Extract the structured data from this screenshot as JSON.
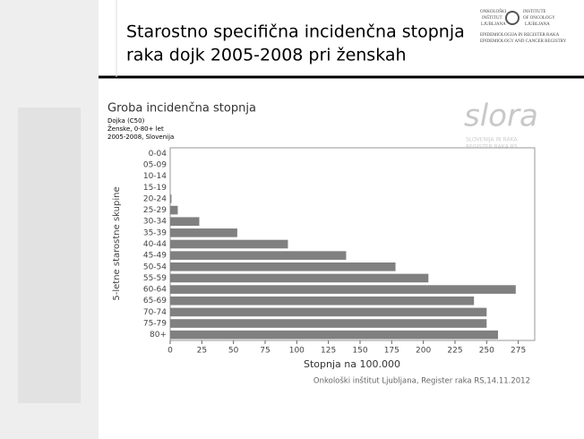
{
  "header": {
    "title_lines": [
      "Starostno specifična incidenčna stopnja",
      "raka dojk 2005-2008 pri ženskah"
    ],
    "logo": [
      "ONKOLOŠKI",
      "INŠTITUT",
      "LJUBLJANA",
      "INSTITUTE",
      "OF ONCOLOGY",
      "LJUBLJANA",
      "EPIDEMIOLOGIJA IN REGISTER RAKA",
      "EPIDEMIOLOGY AND CANCER REGISTRY"
    ]
  },
  "chart_data": {
    "type": "hbar",
    "title": "Groba incidenčna stopnja",
    "subtitle": [
      "Dojka (C50)",
      "Ženske, 0-80+ let",
      "2005-2008, Slovenija"
    ],
    "watermark": [
      "slora",
      "SLOVENIJA IN RAKA",
      "REGISTER RAKA RS"
    ],
    "y_label": "5-letne starostne skupine",
    "x_label": "Stopnja na 100.000",
    "categories": [
      "0-04",
      "05-09",
      "10-14",
      "15-19",
      "20-24",
      "25-29",
      "30-34",
      "35-39",
      "40-44",
      "45-49",
      "50-54",
      "55-59",
      "60-64",
      "65-69",
      "70-74",
      "75-79",
      "80+"
    ],
    "values": [
      0,
      0,
      0,
      0,
      1,
      6,
      23,
      53,
      93,
      139,
      178,
      204,
      273,
      240,
      250,
      250,
      259
    ],
    "color": "#808080",
    "xlim": [
      0,
      288
    ],
    "xticks": [
      0,
      25,
      50,
      75,
      100,
      125,
      150,
      175,
      200,
      225,
      250,
      275
    ]
  },
  "footer": "Onkološki inštitut Ljubljana, Register raka RS,14.11.2012"
}
